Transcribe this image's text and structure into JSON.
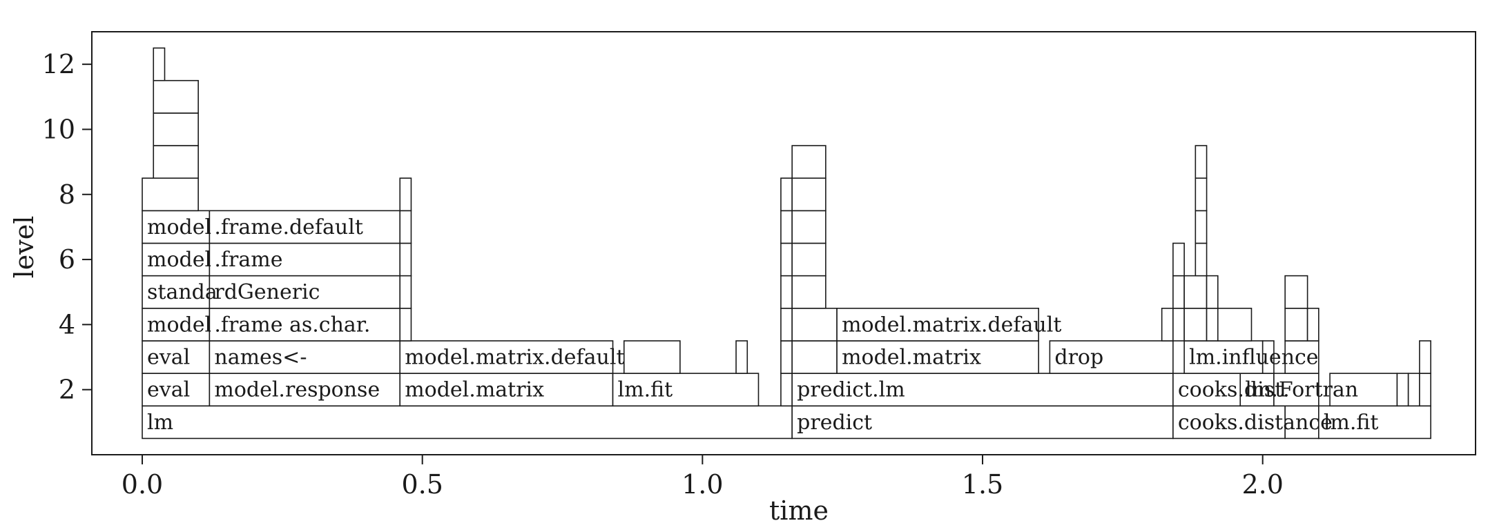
{
  "chart_data": {
    "type": "flame",
    "title": "",
    "xlabel": "time",
    "ylabel": "level",
    "xlim": [
      -0.09,
      2.38
    ],
    "ylim": [
      0.0,
      13.0
    ],
    "xticks": [
      {
        "value": 0.0,
        "label": "0.0"
      },
      {
        "value": 0.5,
        "label": "0.5"
      },
      {
        "value": 1.0,
        "label": "1.0"
      },
      {
        "value": 1.5,
        "label": "1.5"
      },
      {
        "value": 2.0,
        "label": "2.0"
      }
    ],
    "yticks": [
      {
        "value": 2,
        "label": "2"
      },
      {
        "value": 4,
        "label": "4"
      },
      {
        "value": 6,
        "label": "6"
      },
      {
        "value": 8,
        "label": "8"
      },
      {
        "value": 10,
        "label": "10"
      },
      {
        "value": 12,
        "label": "12"
      }
    ],
    "grid": false,
    "frames": [
      {
        "level": 1,
        "start": 0.0,
        "end": 1.16,
        "label": "lm"
      },
      {
        "level": 1,
        "start": 1.16,
        "end": 1.84,
        "label": "predict"
      },
      {
        "level": 1,
        "start": 1.84,
        "end": 2.04,
        "label": "cooks.distance"
      },
      {
        "level": 1,
        "start": 2.04,
        "end": 2.1,
        "label": ""
      },
      {
        "level": 1,
        "start": 2.1,
        "end": 2.3,
        "label": "lm.fit"
      },
      {
        "level": 2,
        "start": 0.0,
        "end": 0.12,
        "label": "eval"
      },
      {
        "level": 2,
        "start": 0.12,
        "end": 0.46,
        "label": "model.response"
      },
      {
        "level": 2,
        "start": 0.46,
        "end": 0.84,
        "label": "model.matrix"
      },
      {
        "level": 2,
        "start": 0.84,
        "end": 1.1,
        "label": "lm.fit"
      },
      {
        "level": 2,
        "start": 1.14,
        "end": 1.16,
        "label": ""
      },
      {
        "level": 2,
        "start": 1.16,
        "end": 1.84,
        "label": "predict.lm"
      },
      {
        "level": 2,
        "start": 1.84,
        "end": 1.96,
        "label": "cooks.dist."
      },
      {
        "level": 2,
        "start": 1.96,
        "end": 2.02,
        "label": "lm."
      },
      {
        "level": 2,
        "start": 2.02,
        "end": 2.1,
        "label": "Fortran"
      },
      {
        "level": 2,
        "start": 2.12,
        "end": 2.24,
        "label": ""
      },
      {
        "level": 2,
        "start": 2.24,
        "end": 2.26,
        "label": ""
      },
      {
        "level": 2,
        "start": 2.26,
        "end": 2.28,
        "label": ""
      },
      {
        "level": 2,
        "start": 2.28,
        "end": 2.3,
        "label": ""
      },
      {
        "level": 3,
        "start": 0.0,
        "end": 0.12,
        "label": "eval"
      },
      {
        "level": 3,
        "start": 0.12,
        "end": 0.46,
        "label": "names<-"
      },
      {
        "level": 3,
        "start": 0.46,
        "end": 0.84,
        "label": "model.matrix.default"
      },
      {
        "level": 3,
        "start": 0.86,
        "end": 0.96,
        "label": ""
      },
      {
        "level": 3,
        "start": 1.06,
        "end": 1.08,
        "label": ""
      },
      {
        "level": 3,
        "start": 1.14,
        "end": 1.16,
        "label": ""
      },
      {
        "level": 3,
        "start": 1.16,
        "end": 1.24,
        "label": ""
      },
      {
        "level": 3,
        "start": 1.24,
        "end": 1.6,
        "label": "model.matrix"
      },
      {
        "level": 3,
        "start": 1.62,
        "end": 1.84,
        "label": "drop"
      },
      {
        "level": 3,
        "start": 1.86,
        "end": 2.0,
        "label": "lm.influence"
      },
      {
        "level": 3,
        "start": 2.0,
        "end": 2.02,
        "label": ""
      },
      {
        "level": 3,
        "start": 2.04,
        "end": 2.1,
        "label": ""
      },
      {
        "level": 3,
        "start": 2.28,
        "end": 2.3,
        "label": ""
      },
      {
        "level": 4,
        "start": 0.0,
        "end": 0.12,
        "label": "model"
      },
      {
        "level": 4,
        "start": 0.12,
        "end": 0.46,
        "label": ".frame as.char."
      },
      {
        "level": 4,
        "start": 0.46,
        "end": 0.48,
        "label": ""
      },
      {
        "level": 4,
        "start": 1.14,
        "end": 1.16,
        "label": ""
      },
      {
        "level": 4,
        "start": 1.16,
        "end": 1.24,
        "label": ""
      },
      {
        "level": 4,
        "start": 1.24,
        "end": 1.6,
        "label": "model.matrix.default"
      },
      {
        "level": 4,
        "start": 1.82,
        "end": 1.84,
        "label": ""
      },
      {
        "level": 4,
        "start": 1.84,
        "end": 1.86,
        "label": ""
      },
      {
        "level": 4,
        "start": 1.86,
        "end": 1.9,
        "label": ""
      },
      {
        "level": 4,
        "start": 1.9,
        "end": 1.92,
        "label": ""
      },
      {
        "level": 4,
        "start": 1.92,
        "end": 1.98,
        "label": ""
      },
      {
        "level": 4,
        "start": 2.04,
        "end": 2.08,
        "label": ""
      },
      {
        "level": 4,
        "start": 2.08,
        "end": 2.1,
        "label": ""
      },
      {
        "level": 5,
        "start": 0.0,
        "end": 0.12,
        "label": "standa"
      },
      {
        "level": 5,
        "start": 0.12,
        "end": 0.46,
        "label": "rdGeneric"
      },
      {
        "level": 5,
        "start": 0.46,
        "end": 0.48,
        "label": ""
      },
      {
        "level": 5,
        "start": 1.14,
        "end": 1.16,
        "label": ""
      },
      {
        "level": 5,
        "start": 1.16,
        "end": 1.22,
        "label": ""
      },
      {
        "level": 5,
        "start": 1.84,
        "end": 1.86,
        "label": ""
      },
      {
        "level": 5,
        "start": 1.86,
        "end": 1.9,
        "label": ""
      },
      {
        "level": 5,
        "start": 1.9,
        "end": 1.92,
        "label": ""
      },
      {
        "level": 5,
        "start": 2.04,
        "end": 2.08,
        "label": ""
      },
      {
        "level": 6,
        "start": 0.0,
        "end": 0.12,
        "label": "model"
      },
      {
        "level": 6,
        "start": 0.12,
        "end": 0.46,
        "label": ".frame"
      },
      {
        "level": 6,
        "start": 0.46,
        "end": 0.48,
        "label": ""
      },
      {
        "level": 6,
        "start": 1.14,
        "end": 1.16,
        "label": ""
      },
      {
        "level": 6,
        "start": 1.16,
        "end": 1.22,
        "label": ""
      },
      {
        "level": 6,
        "start": 1.84,
        "end": 1.86,
        "label": ""
      },
      {
        "level": 6,
        "start": 1.88,
        "end": 1.9,
        "label": ""
      },
      {
        "level": 7,
        "start": 0.0,
        "end": 0.12,
        "label": "model"
      },
      {
        "level": 7,
        "start": 0.12,
        "end": 0.46,
        "label": ".frame.default"
      },
      {
        "level": 7,
        "start": 0.46,
        "end": 0.48,
        "label": ""
      },
      {
        "level": 7,
        "start": 1.14,
        "end": 1.16,
        "label": ""
      },
      {
        "level": 7,
        "start": 1.16,
        "end": 1.22,
        "label": ""
      },
      {
        "level": 7,
        "start": 1.88,
        "end": 1.9,
        "label": ""
      },
      {
        "level": 8,
        "start": 0.0,
        "end": 0.1,
        "label": ""
      },
      {
        "level": 8,
        "start": 0.46,
        "end": 0.48,
        "label": ""
      },
      {
        "level": 8,
        "start": 1.14,
        "end": 1.16,
        "label": ""
      },
      {
        "level": 8,
        "start": 1.16,
        "end": 1.22,
        "label": ""
      },
      {
        "level": 8,
        "start": 1.88,
        "end": 1.9,
        "label": ""
      },
      {
        "level": 9,
        "start": 0.02,
        "end": 0.1,
        "label": ""
      },
      {
        "level": 9,
        "start": 1.16,
        "end": 1.22,
        "label": ""
      },
      {
        "level": 9,
        "start": 1.88,
        "end": 1.9,
        "label": ""
      },
      {
        "level": 10,
        "start": 0.02,
        "end": 0.1,
        "label": ""
      },
      {
        "level": 11,
        "start": 0.02,
        "end": 0.1,
        "label": ""
      },
      {
        "level": 12,
        "start": 0.02,
        "end": 0.04,
        "label": ""
      }
    ]
  }
}
